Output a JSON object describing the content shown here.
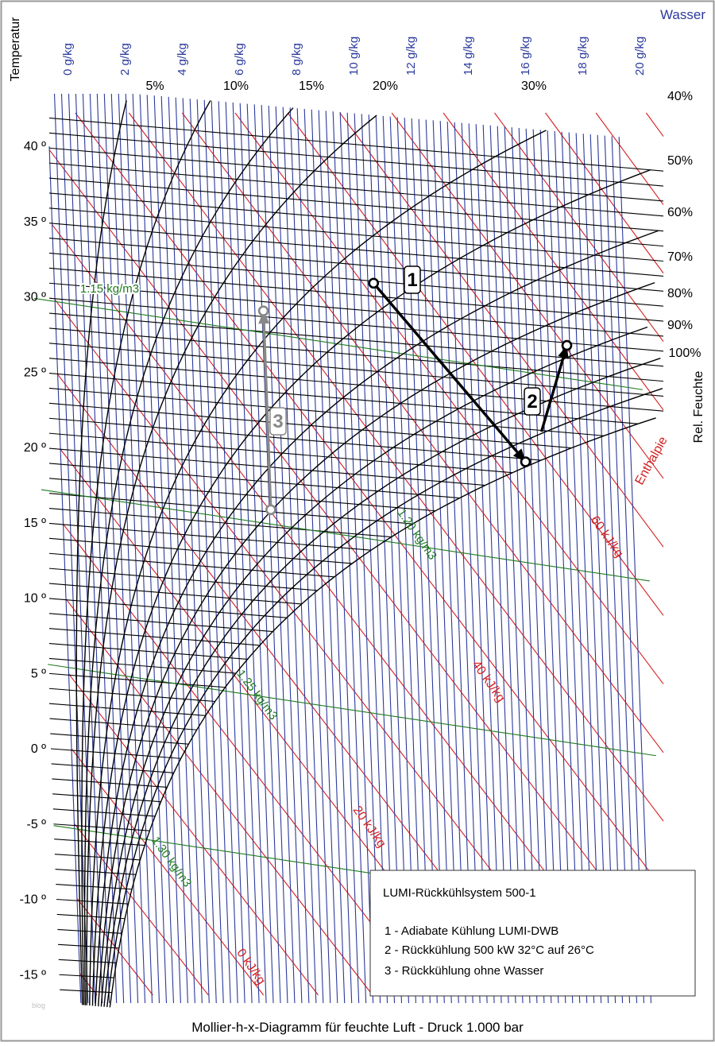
{
  "chart_data": {
    "type": "line",
    "title": "Mollier-h-x-Diagramm für feuchte Luft - Druck  1.000 bar",
    "y_axis_title": "Temperatur",
    "top_axis_title": "Wasser",
    "right_axis_title": "Rel. Feuchte",
    "enthalpy_title": "Enthalpie",
    "colors": {
      "water": "#2b3a9c",
      "enthalpy": "#d42020",
      "density": "#1e7a1e",
      "rh": "#000000",
      "frame": "#999999",
      "process": "#000000",
      "process_gray": "#888888"
    },
    "water_ticks": [
      "0 g/kg",
      "2 g/kg",
      "4 g/kg",
      "6 g/kg",
      "8 g/kg",
      "10 g/kg",
      "12 g/kg",
      "14 g/kg",
      "16 g/kg",
      "18 g/kg",
      "20 g/kg"
    ],
    "temp_ticks": [
      "40 º",
      "35 º",
      "30 º",
      "25 º",
      "20 º",
      "15 º",
      "10 º",
      "5 º",
      "0 º",
      "-5 º",
      "-10 º",
      "-15 º"
    ],
    "rh_curves": [
      "5%",
      "10%",
      "15%",
      "20%",
      "30%",
      "40%",
      "50%",
      "60%",
      "70%",
      "80%",
      "90%",
      "100%"
    ],
    "enthalpy_labels": [
      "0 kJ/kg",
      "20 kJ/kg",
      "40 kJ/kg",
      "60 kJ/kg"
    ],
    "density_labels": [
      "1.15 kg/m3",
      "1.20 kg/m3",
      "1.25 kg/m3",
      "1.30 kg/m3"
    ],
    "process_labels": [
      "1",
      "2",
      "3"
    ],
    "process_points": [
      {
        "name": "1",
        "t": 32.8,
        "x": 11.2
      },
      {
        "name": "adiabatic end",
        "t": 21.8,
        "x": 16.3
      },
      {
        "name": "2",
        "t": 29.8,
        "x": 17.9
      },
      {
        "name": "3 start",
        "t": 17.1,
        "x": 7.3
      },
      {
        "name": "3 end",
        "t": 30.3,
        "x": 7.3
      }
    ],
    "legend": {
      "title": "LUMI-Rückkühlsystem 500-1",
      "items": [
        "1 - Adiabate Kühlung LUMI-DWB",
        "2 - Rückkühlung 500 kW 32°C auf 26°C",
        "3 - Rückkühlung ohne Wasser"
      ]
    },
    "ylim": [
      -17,
      43
    ],
    "xlim": [
      0,
      20.5
    ],
    "watermark": "blog"
  }
}
